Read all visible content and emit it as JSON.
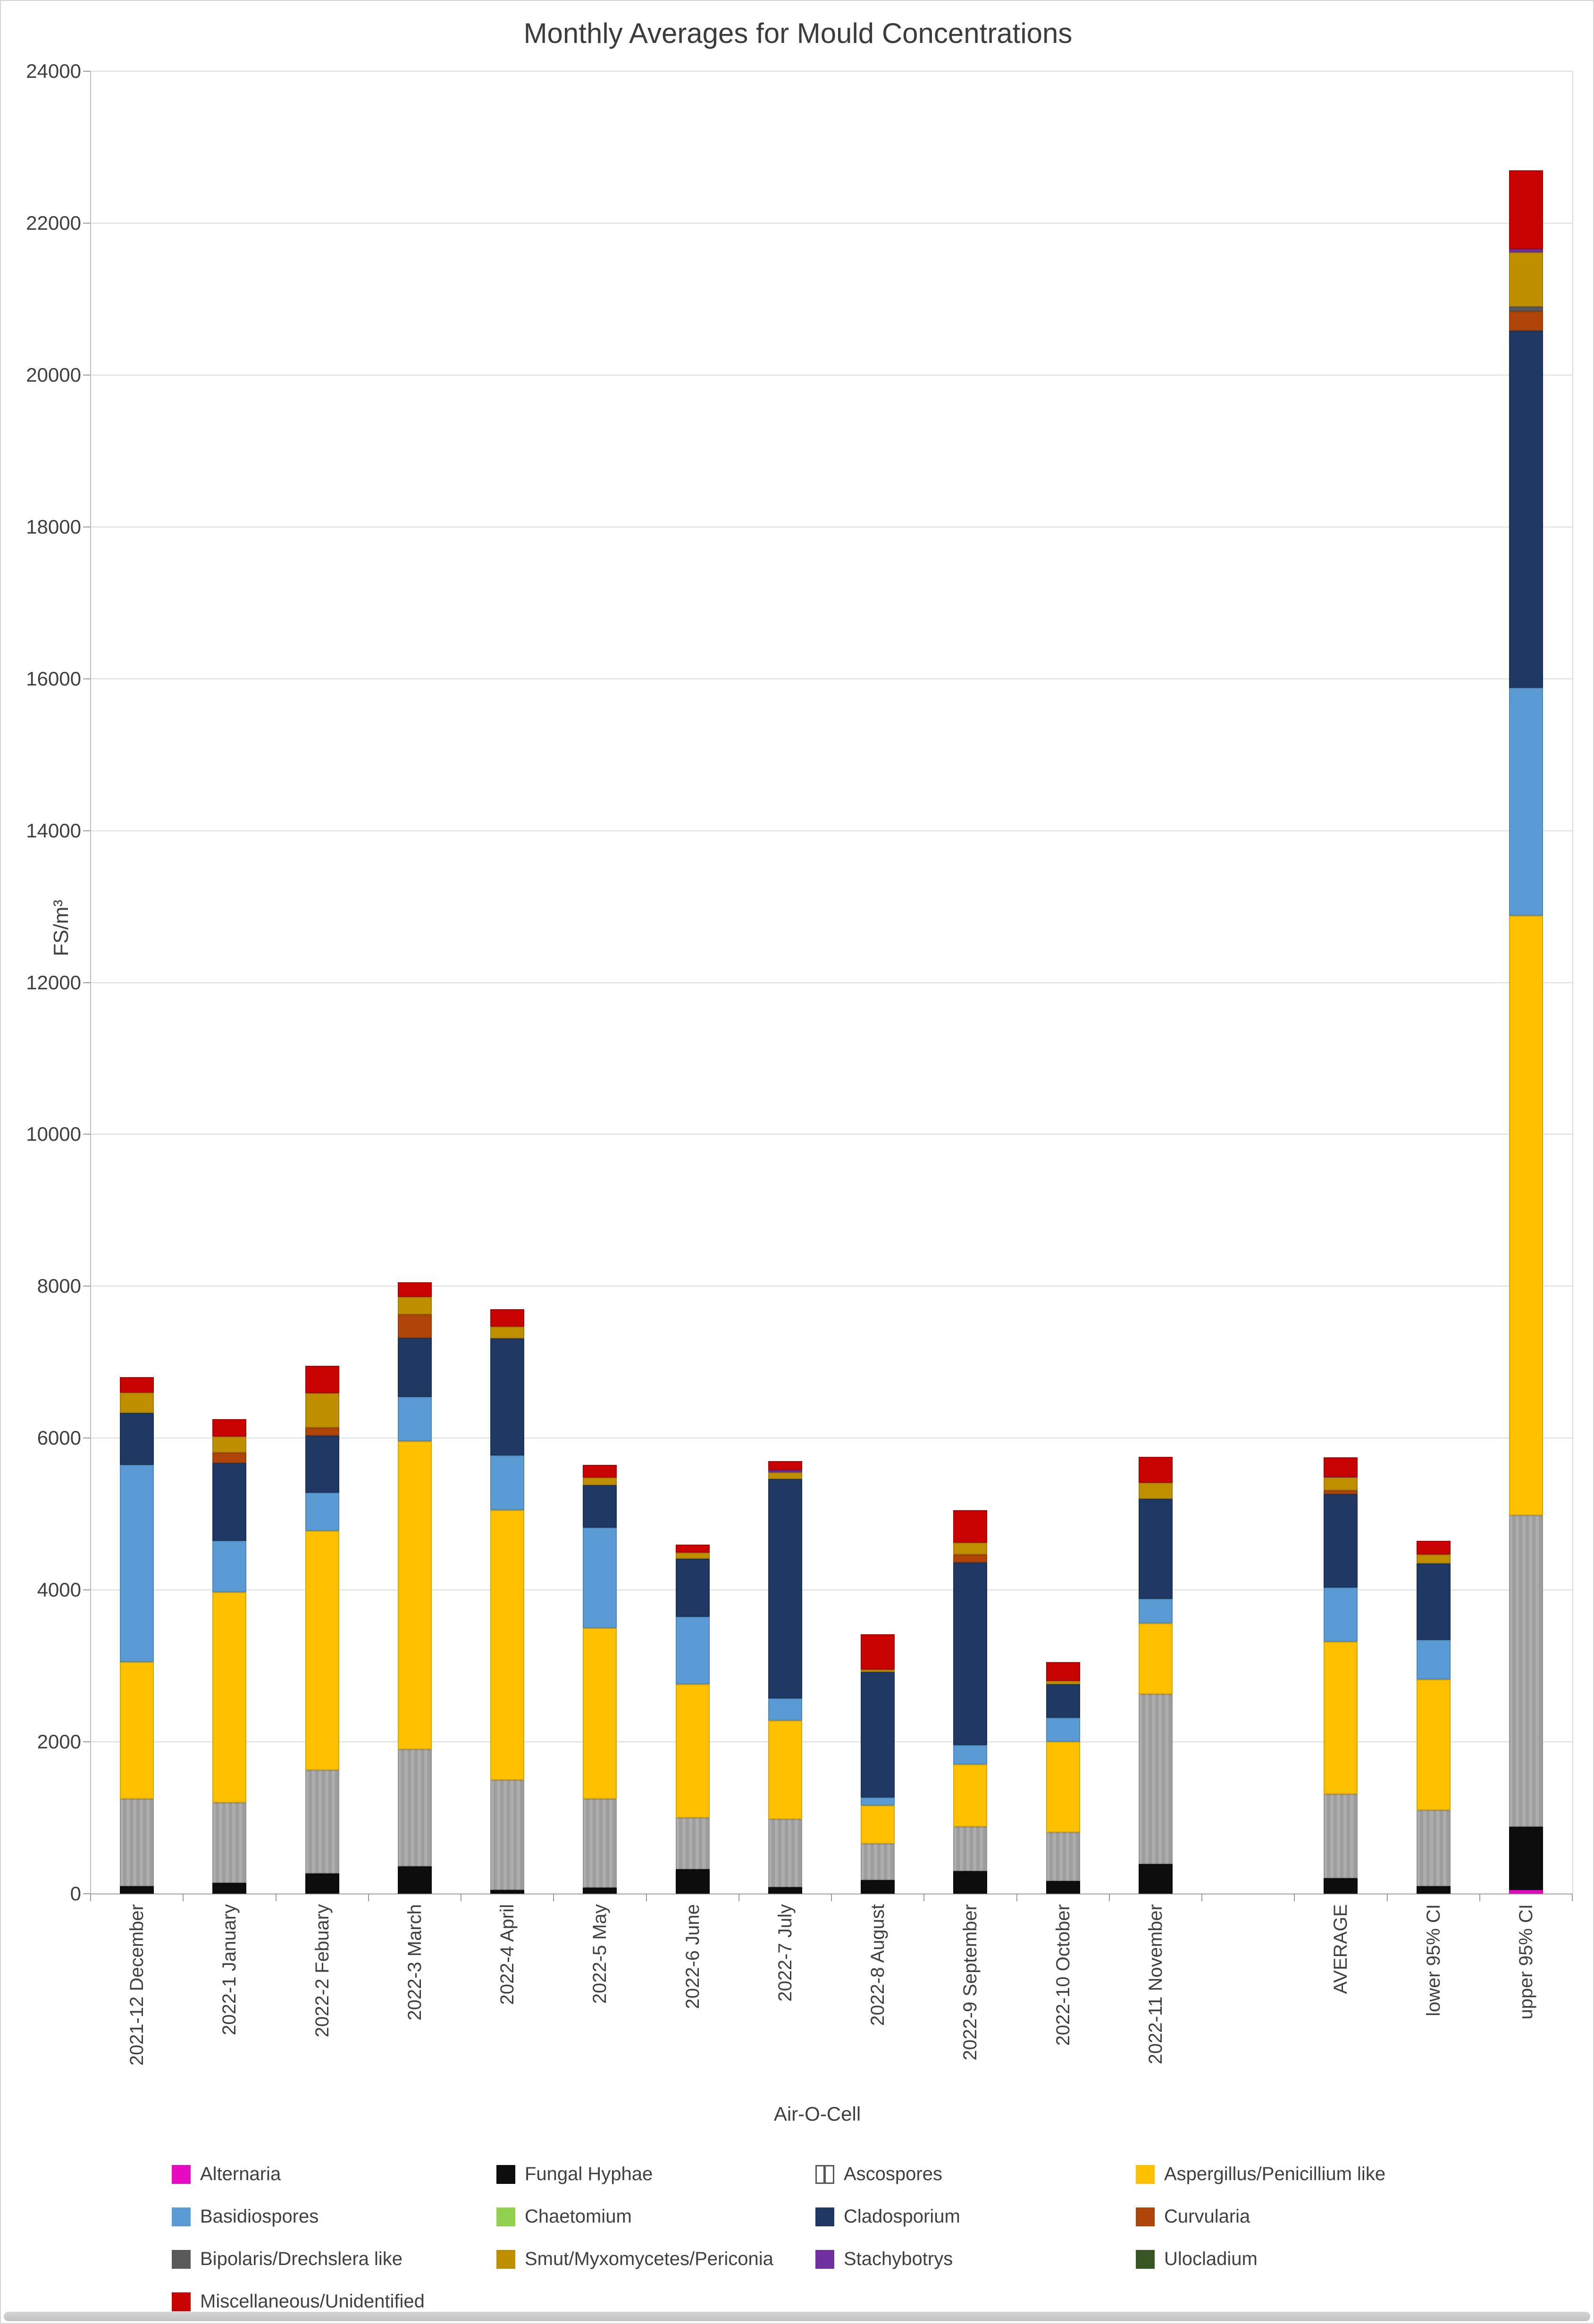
{
  "title": "Monthly Averages for Mould Concentrations",
  "y_axis_title": "FS/m³",
  "x_axis_title": "Air-O-Cell",
  "chart_data": {
    "type": "bar",
    "stacked": true,
    "title": "Monthly Averages for Mould Concentrations",
    "xlabel": "Air-O-Cell",
    "ylabel": "FS/m³",
    "ylim": [
      0,
      24000
    ],
    "y_step": 2000,
    "y_tick_labels": [
      "0",
      "2000",
      "4000",
      "6000",
      "8000",
      "10000",
      "12000",
      "14000",
      "16000",
      "18000",
      "20000",
      "22000",
      "24000"
    ],
    "grid": true,
    "legend_position": "bottom",
    "categories": [
      "2021-12 December",
      "2022-1 January",
      "2022-2 Febuary",
      "2022-3 March",
      "2022-4 April",
      "2022-5 May",
      "2022-6 June",
      "2022-7 July",
      "2022-8 August",
      "2022-9 September",
      "2022-10 October",
      "2022-11 November",
      "",
      "AVERAGE",
      "lower 95% CI",
      "upper 95% CI"
    ],
    "series": [
      {
        "name": "Alternaria",
        "color": "#e60bc0",
        "values": [
          0,
          0,
          0,
          0,
          0,
          0,
          0,
          0,
          0,
          0,
          0,
          0,
          0,
          0,
          0,
          50
        ]
      },
      {
        "name": "Fungal Hyphae",
        "color": "#0d0d0d",
        "values": [
          100,
          140,
          270,
          360,
          50,
          80,
          320,
          90,
          180,
          300,
          170,
          390,
          0,
          205,
          100,
          830
        ]
      },
      {
        "name": "Ascospores",
        "color": "#a6a6a6",
        "pattern": "vertical-stripes",
        "values": [
          1150,
          1060,
          1360,
          1540,
          1450,
          1170,
          680,
          890,
          480,
          580,
          640,
          2240,
          0,
          1105,
          1000,
          4100
        ]
      },
      {
        "name": "Aspergillus/Penicillium like",
        "color": "#ffc000",
        "values": [
          1800,
          2770,
          3150,
          4060,
          3550,
          2250,
          1760,
          1300,
          500,
          820,
          1190,
          930,
          0,
          2005,
          1720,
          7900
        ]
      },
      {
        "name": "Basidiospores",
        "color": "#5b9bd5",
        "values": [
          2600,
          680,
          500,
          580,
          720,
          1320,
          890,
          290,
          110,
          260,
          320,
          320,
          0,
          715,
          520,
          3000
        ]
      },
      {
        "name": "Chaetomium",
        "color": "#92d050",
        "values": [
          0,
          0,
          0,
          0,
          0,
          0,
          0,
          0,
          0,
          0,
          0,
          0,
          0,
          0,
          0,
          0
        ]
      },
      {
        "name": "Cladosporium",
        "color": "#1f3864",
        "values": [
          680,
          1020,
          750,
          780,
          1540,
          560,
          760,
          2890,
          1650,
          2400,
          440,
          1320,
          0,
          1230,
          1010,
          4700
        ]
      },
      {
        "name": "Curvularia",
        "color": "#b04509",
        "values": [
          0,
          140,
          110,
          310,
          0,
          0,
          0,
          0,
          0,
          110,
          0,
          0,
          0,
          55,
          0,
          260
        ]
      },
      {
        "name": "Bipolaris/Drechslera like",
        "color": "#595959",
        "values": [
          0,
          0,
          0,
          0,
          0,
          0,
          0,
          0,
          0,
          0,
          0,
          0,
          0,
          0,
          0,
          60
        ]
      },
      {
        "name": "Smut/Myxomycetes/Periconia",
        "color": "#bf8f00",
        "values": [
          270,
          210,
          450,
          230,
          160,
          100,
          80,
          90,
          30,
          150,
          40,
          210,
          0,
          170,
          120,
          715
        ]
      },
      {
        "name": "Stachybotrys",
        "color": "#7030a0",
        "values": [
          0,
          0,
          0,
          0,
          0,
          0,
          0,
          30,
          0,
          0,
          0,
          0,
          0,
          3,
          0,
          40
        ]
      },
      {
        "name": "Ulocladium",
        "color": "#375623",
        "values": [
          0,
          0,
          0,
          0,
          0,
          0,
          0,
          0,
          0,
          0,
          0,
          0,
          0,
          0,
          0,
          0
        ]
      },
      {
        "name": "Miscellaneous/Unidentified",
        "color": "#c90202",
        "values": [
          200,
          230,
          360,
          190,
          230,
          170,
          110,
          120,
          470,
          430,
          250,
          340,
          0,
          260,
          180,
          1040
        ]
      }
    ]
  }
}
